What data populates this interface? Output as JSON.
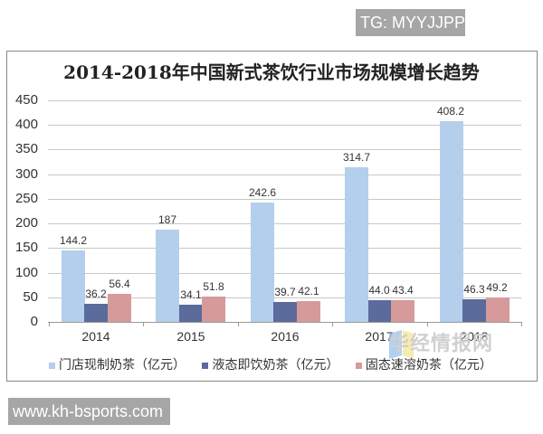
{
  "watermarks": {
    "top_tag": "TG: MYYJJPP",
    "bottom_tag": "www.kh-bsports.com",
    "site_logo_text": "华经情报网"
  },
  "colors": {
    "store_milk_tea": "#b4cfec",
    "liquid_milk_tea": "#5a6b9c",
    "instant_milk_tea": "#d69a9a",
    "grid": "#c8c8c8"
  },
  "chart_data": {
    "type": "bar",
    "title": "2014-2018年中国新式茶饮行业市场规模增长趋势",
    "xlabel": "",
    "ylabel": "",
    "ylim": [
      0,
      450
    ],
    "yticks": [
      0,
      50,
      100,
      150,
      200,
      250,
      300,
      350,
      400,
      450
    ],
    "grid": true,
    "legend_position": "bottom",
    "categories": [
      "2014",
      "2015",
      "2016",
      "2017",
      "2018"
    ],
    "series": [
      {
        "name": "门店现制奶茶（亿元）",
        "values": [
          144.2,
          187,
          242.6,
          314.7,
          408.2
        ],
        "labels": [
          "144.2",
          "187",
          "242.6",
          "314.7",
          "408.2"
        ]
      },
      {
        "name": "液态即饮奶茶（亿元）",
        "values": [
          36.2,
          34.1,
          39.7,
          44.0,
          46.3
        ],
        "labels": [
          "36.2",
          "34.1",
          "39.7",
          "44.0",
          "46.3"
        ]
      },
      {
        "name": "固态速溶奶茶（亿元）",
        "values": [
          56.4,
          51.8,
          42.1,
          43.4,
          49.2
        ],
        "labels": [
          "56.4",
          "51.8",
          "42.1",
          "43.4",
          "49.2"
        ]
      }
    ]
  }
}
